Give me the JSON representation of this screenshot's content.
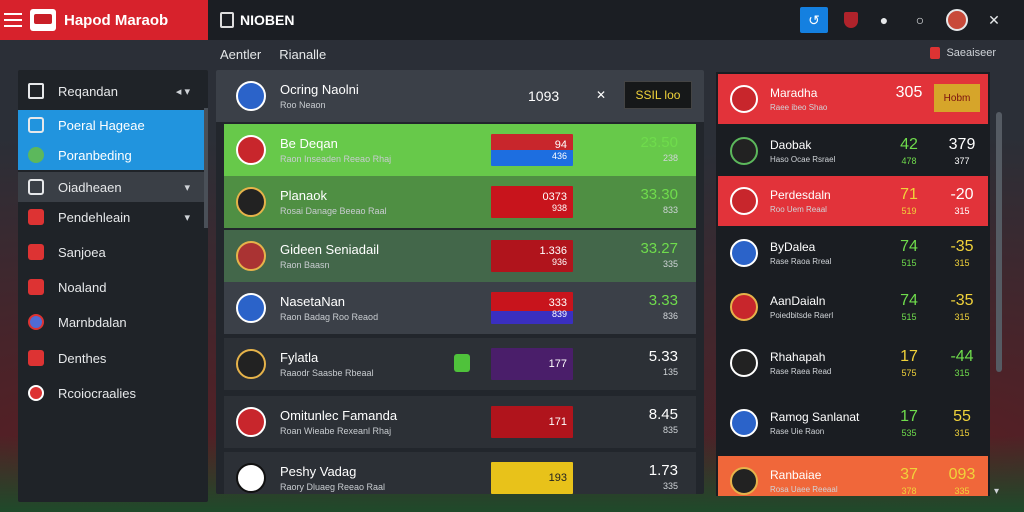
{
  "brand": {
    "title": "Hapod Maraob"
  },
  "app": {
    "name": "NIOBEN"
  },
  "breadcrumb": {
    "a": "Aentler",
    "b": "Rianalle"
  },
  "right_header": {
    "label": "Saeaiseer"
  },
  "sidebar": {
    "items": [
      {
        "label": "Reqandan",
        "icon": "home-icon"
      },
      {
        "label": "Poeral Hageae",
        "icon": "shield-icon"
      },
      {
        "label": "Poranbeding",
        "icon": "trophy-icon"
      },
      {
        "label": "Oiadheaen",
        "icon": "document-icon"
      },
      {
        "label": "Pendehleain",
        "icon": "flag-icon"
      },
      {
        "label": "Sanjoea",
        "icon": "shield-icon"
      },
      {
        "label": "Noaland",
        "icon": "shield-icon"
      },
      {
        "label": "Marnbdalan",
        "icon": "ball-icon"
      },
      {
        "label": "Denthes",
        "icon": "shield-icon"
      },
      {
        "label": "Rcoiocraalies",
        "icon": "target-icon"
      }
    ]
  },
  "main": {
    "header": {
      "name": "Ocring Naolni",
      "sub": "Roo Neaon",
      "score": "1093",
      "button": "SSIL loo"
    },
    "rows": [
      {
        "name": "Be Deqan",
        "sub": "Raon Inseaden Reeao Rhaj",
        "b1": "94",
        "b2": "436",
        "s1": "23.50",
        "s2": "238"
      },
      {
        "name": "Planaok",
        "sub": "Rosai Danage Beeao Raal",
        "b1": "0373",
        "b2": "938",
        "s1": "33.30",
        "s2": "833"
      },
      {
        "name": "Gideen Seniadail",
        "sub": "Raon Baasn",
        "b1": "1.336",
        "b2": "936",
        "s1": "33.27",
        "s2": "335"
      },
      {
        "name": "NasetaNan",
        "sub": "Raon Badag Roo Reaod",
        "b1": "333",
        "b2": "839",
        "s1": "3.33",
        "s2": "836"
      },
      {
        "name": "Fylatla",
        "sub": "Raaodr Saasbe Rbeaal",
        "b1": "177",
        "b2": "",
        "s1": "5.33",
        "s2": "135"
      },
      {
        "name": "Omitunlec Famanda",
        "sub": "Roan Wieabe Rexeanl Rhaj",
        "b1": "171",
        "b2": "",
        "s1": "8.45",
        "s2": "835"
      },
      {
        "name": "Peshy Vadag",
        "sub": "Raory Dluaeg Reeao Raal",
        "b1": "193",
        "b2": "",
        "s1": "1.73",
        "s2": "335"
      }
    ]
  },
  "right": {
    "rows": [
      {
        "name": "Maradha",
        "sub": "Raee ibeo Shao",
        "c1": "305",
        "c1s": "",
        "c2": "Hobm",
        "c2s": ""
      },
      {
        "name": "Daobak",
        "sub": "Haso Ocae Rsrael",
        "c1": "42",
        "c1s": "478",
        "c2": "379",
        "c2s": "377"
      },
      {
        "name": "Perdesdaln",
        "sub": "Roo Uem Reaal",
        "c1": "71",
        "c1s": "519",
        "c2": "-20",
        "c2s": "315"
      },
      {
        "name": "ByDalea",
        "sub": "Rase Raoa Rreal",
        "c1": "74",
        "c1s": "515",
        "c2": "-35",
        "c2s": "315"
      },
      {
        "name": "AanDaialn",
        "sub": "Poiedbitsde Raerl",
        "c1": "74",
        "c1s": "515",
        "c2": "-35",
        "c2s": "315"
      },
      {
        "name": "Rhahapah",
        "sub": "Rase Raea Read",
        "c1": "17",
        "c1s": "575",
        "c2": "-44",
        "c2s": "315"
      },
      {
        "name": "Ramog Sanlanat",
        "sub": "Rase Uie Raon",
        "c1": "17",
        "c1s": "535",
        "c2": "55",
        "c2s": "315"
      },
      {
        "name": "Ranbaiae",
        "sub": "Rosa Uaee Reeaal",
        "c1": "37",
        "c1s": "378",
        "c2": "093",
        "c2s": "335"
      }
    ]
  }
}
